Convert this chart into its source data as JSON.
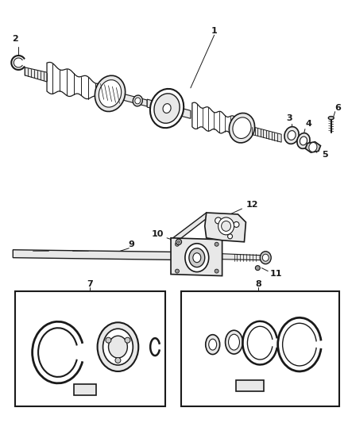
{
  "bg_color": "#ffffff",
  "line_color": "#1a1a1a",
  "fill_light": "#e8e8e8",
  "fill_mid": "#cccccc",
  "fill_dark": "#999999",
  "fig_width": 4.38,
  "fig_height": 5.33,
  "dpi": 100
}
